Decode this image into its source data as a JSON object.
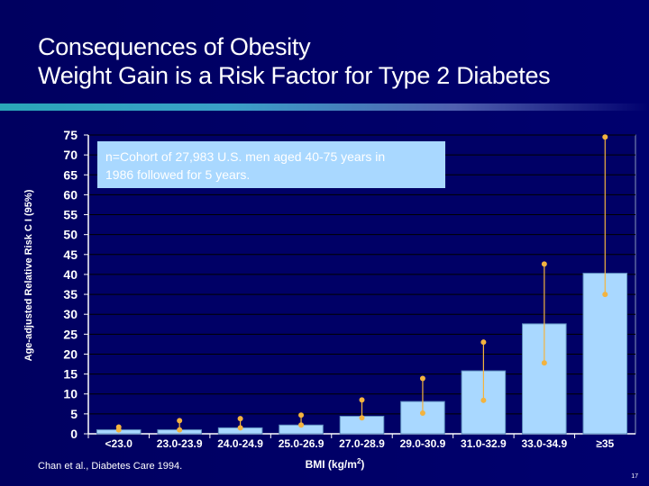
{
  "slide": {
    "title_line1": "Consequences of Obesity",
    "title_line2": "Weight Gain is a Risk Factor for Type 2 Diabetes",
    "source": "Chan et al., Diabetes Care 1994.",
    "page_number": "17"
  },
  "chart_data": {
    "type": "bar",
    "ylabel": "Age-adjusted Relative Risk  C I (95%)",
    "xlabel_main": "BMI (kg/m",
    "xlabel_sup": "2",
    "xlabel_tail": ")",
    "ylim": [
      0,
      75
    ],
    "ytick_step": 5,
    "categories": [
      "<23.0",
      "23.0-23.9",
      "24.0-24.9",
      "25.0-26.9",
      "27.0-28.9",
      "29.0-30.9",
      "31.0-32.9",
      "33.0-34.9",
      "≥35"
    ],
    "values": [
      1.0,
      1.0,
      1.5,
      2.2,
      4.4,
      8.1,
      15.8,
      27.6,
      40.3
    ],
    "ci_upper": [
      1.7,
      3.3,
      3.8,
      4.7,
      8.5,
      13.9,
      23.0,
      42.6,
      74.5
    ],
    "ci_lower": [
      1.0,
      1.0,
      1.5,
      2.2,
      4.0,
      5.2,
      8.4,
      17.8,
      35.0
    ],
    "annotation": "n=Cohort of 27,983 U.S. men aged 40-75 years in 1986 followed for 5 years.",
    "grid": true,
    "colors": {
      "bar_fill": "#a9d8ff",
      "bar_stroke": "#5f8fbf",
      "error_bar": "#f3b33f",
      "plot_bg": "#000066",
      "grid": "#000000",
      "annotation_bg": "#a9d8ff",
      "annotation_text": "#ffffff"
    }
  }
}
